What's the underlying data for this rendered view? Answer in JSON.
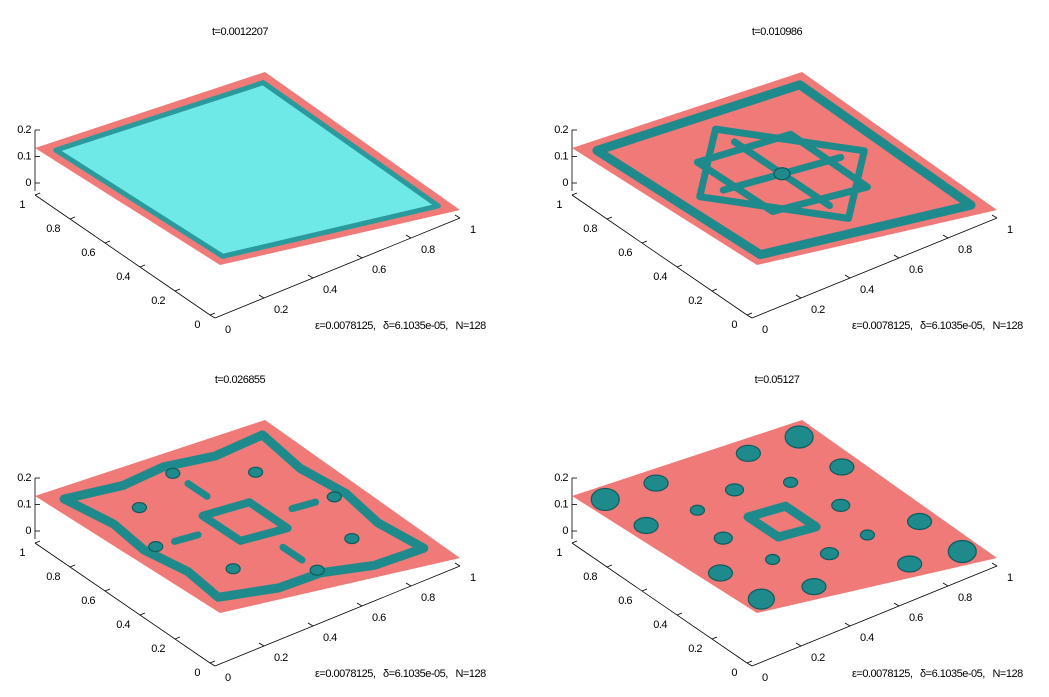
{
  "chart_data": [
    {
      "type": "surface",
      "title": "t=0.0012207",
      "annotation": "ε=0.0078125,   δ=6.1035e-05,   N=128",
      "xlim": [
        0,
        1
      ],
      "ylim": [
        0,
        1
      ],
      "zlim": [
        0,
        0.2
      ],
      "xticks": [
        0,
        0.2,
        0.4,
        0.6,
        0.8,
        1
      ],
      "yticks": [
        0,
        0.2,
        0.4,
        0.6,
        0.8,
        1
      ],
      "zticks": [
        0,
        0.1,
        0.2
      ],
      "color": "#ef7a78",
      "blob_color": "#6fe8e8"
    },
    {
      "type": "surface",
      "title": "t=0.010986",
      "annotation": "ε=0.0078125,   δ=6.1035e-05,   N=128",
      "xlim": [
        0,
        1
      ],
      "ylim": [
        0,
        1
      ],
      "zlim": [
        0,
        0.2
      ],
      "xticks": [
        0,
        0.2,
        0.4,
        0.6,
        0.8,
        1
      ],
      "yticks": [
        0,
        0.2,
        0.4,
        0.6,
        0.8,
        1
      ],
      "zticks": [
        0,
        0.1,
        0.2
      ],
      "color": "#ef7a78",
      "blob_color": "#1f8a8c"
    },
    {
      "type": "surface",
      "title": "t=0.026855",
      "annotation": "ε=0.0078125,   δ=6.1035e-05,   N=128",
      "xlim": [
        0,
        1
      ],
      "ylim": [
        0,
        1
      ],
      "zlim": [
        0,
        0.2
      ],
      "xticks": [
        0,
        0.2,
        0.4,
        0.6,
        0.8,
        1
      ],
      "yticks": [
        0,
        0.2,
        0.4,
        0.6,
        0.8,
        1
      ],
      "zticks": [
        0,
        0.1,
        0.2
      ],
      "color": "#ef7a78",
      "blob_color": "#1f8a8c"
    },
    {
      "type": "surface",
      "title": "t=0.05127",
      "annotation": "ε=0.0078125,   δ=6.1035e-05,   N=128",
      "xlim": [
        0,
        1
      ],
      "ylim": [
        0,
        1
      ],
      "zlim": [
        0,
        0.2
      ],
      "xticks": [
        0,
        0.2,
        0.4,
        0.6,
        0.8,
        1
      ],
      "yticks": [
        0,
        0.2,
        0.4,
        0.6,
        0.8,
        1
      ],
      "zticks": [
        0,
        0.1,
        0.2
      ],
      "color": "#ef7a78",
      "blob_color": "#1f8a8c"
    }
  ]
}
